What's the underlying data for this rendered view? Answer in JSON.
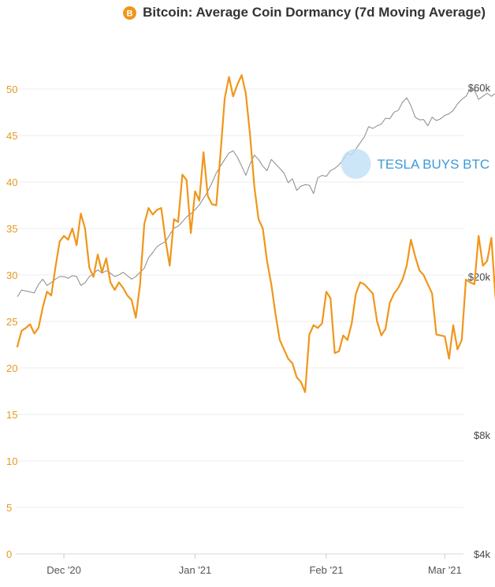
{
  "title": "Bitcoin: Average Coin Dormancy (7d Moving Average)",
  "annotation": "TESLA BUYS BTC",
  "icon": "bitcoin-icon",
  "colors": {
    "dormancy": "#f0961a",
    "price": "#8a8a8a",
    "annotation": "#3b9ad9",
    "annotation_circle": "#bfe0f5",
    "left_axis_text": "#e59a22",
    "right_axis_text": "#444444",
    "grid": "#ececec"
  },
  "chart_data": {
    "type": "line",
    "title": "Bitcoin: Average Coin Dormancy (7d Moving Average)",
    "x_axis": {
      "type": "date",
      "range": [
        "2020-11-20",
        "2021-03-30"
      ],
      "ticks": [
        {
          "date": "2020-12-01",
          "label": "Dec '20"
        },
        {
          "date": "2021-01-01",
          "label": "Jan '21"
        },
        {
          "date": "2021-02-01",
          "label": "Feb '21"
        },
        {
          "date": "2021-03-01",
          "label": "Mar '21"
        }
      ]
    },
    "y_left": {
      "min": 0,
      "max": 52,
      "ticks": [
        0,
        5,
        10,
        15,
        20,
        25,
        30,
        35,
        40,
        45,
        50
      ]
    },
    "y_right": {
      "scale": "log",
      "ticks": [
        {
          "value": 4000,
          "label": "$4k"
        },
        {
          "value": 8000,
          "label": "$8k"
        },
        {
          "value": 20000,
          "label": "$20k"
        },
        {
          "value": 60000,
          "label": "$60k"
        }
      ]
    },
    "grid": true,
    "annotations": [
      {
        "text": "TESLA BUYS BTC",
        "date": "2021-02-08",
        "price": 38500
      }
    ],
    "series": [
      {
        "axis": "left",
        "color": "#f0961a",
        "points": [
          [
            "2020-11-20",
            22.3
          ],
          [
            "2020-11-21",
            24.0
          ],
          [
            "2020-11-22",
            24.3
          ],
          [
            "2020-11-23",
            24.7
          ],
          [
            "2020-11-24",
            23.7
          ],
          [
            "2020-11-25",
            24.3
          ],
          [
            "2020-11-26",
            26.5
          ],
          [
            "2020-11-27",
            28.2
          ],
          [
            "2020-11-28",
            27.8
          ],
          [
            "2020-11-29",
            30.8
          ],
          [
            "2020-11-30",
            33.6
          ],
          [
            "2020-12-01",
            34.2
          ],
          [
            "2020-12-02",
            33.8
          ],
          [
            "2020-12-03",
            35.0
          ],
          [
            "2020-12-04",
            33.2
          ],
          [
            "2020-12-05",
            36.6
          ],
          [
            "2020-12-06",
            35.0
          ],
          [
            "2020-12-07",
            30.8
          ],
          [
            "2020-12-08",
            29.8
          ],
          [
            "2020-12-09",
            32.2
          ],
          [
            "2020-12-10",
            30.3
          ],
          [
            "2020-12-11",
            31.8
          ],
          [
            "2020-12-12",
            29.2
          ],
          [
            "2020-12-13",
            28.4
          ],
          [
            "2020-12-14",
            29.2
          ],
          [
            "2020-12-15",
            28.6
          ],
          [
            "2020-12-16",
            27.8
          ],
          [
            "2020-12-17",
            27.3
          ],
          [
            "2020-12-18",
            25.4
          ],
          [
            "2020-12-19",
            29.0
          ],
          [
            "2020-12-20",
            35.5
          ],
          [
            "2020-12-21",
            37.2
          ],
          [
            "2020-12-22",
            36.5
          ],
          [
            "2020-12-23",
            37.0
          ],
          [
            "2020-12-24",
            37.2
          ],
          [
            "2020-12-25",
            33.8
          ],
          [
            "2020-12-26",
            31.0
          ],
          [
            "2020-12-27",
            36.0
          ],
          [
            "2020-12-28",
            35.7
          ],
          [
            "2020-12-29",
            40.8
          ],
          [
            "2020-12-30",
            40.2
          ],
          [
            "2020-12-31",
            34.5
          ],
          [
            "2021-01-01",
            39.0
          ],
          [
            "2021-01-02",
            38.0
          ],
          [
            "2021-01-03",
            43.2
          ],
          [
            "2021-01-04",
            38.5
          ],
          [
            "2021-01-05",
            37.6
          ],
          [
            "2021-01-06",
            37.5
          ],
          [
            "2021-01-07",
            43.0
          ],
          [
            "2021-01-08",
            49.0
          ],
          [
            "2021-01-09",
            51.3
          ],
          [
            "2021-01-10",
            49.2
          ],
          [
            "2021-01-11",
            50.5
          ],
          [
            "2021-01-12",
            51.5
          ],
          [
            "2021-01-13",
            49.5
          ],
          [
            "2021-01-14",
            45.0
          ],
          [
            "2021-01-15",
            39.5
          ],
          [
            "2021-01-16",
            36.0
          ],
          [
            "2021-01-17",
            35.0
          ],
          [
            "2021-01-18",
            31.5
          ],
          [
            "2021-01-19",
            29.0
          ],
          [
            "2021-01-20",
            25.8
          ],
          [
            "2021-01-21",
            23.0
          ],
          [
            "2021-01-22",
            22.0
          ],
          [
            "2021-01-23",
            21.0
          ],
          [
            "2021-01-24",
            20.5
          ],
          [
            "2021-01-25",
            19.0
          ],
          [
            "2021-01-26",
            18.5
          ],
          [
            "2021-01-27",
            17.4
          ],
          [
            "2021-01-28",
            23.6
          ],
          [
            "2021-01-29",
            24.6
          ],
          [
            "2021-01-30",
            24.3
          ],
          [
            "2021-01-31",
            24.8
          ],
          [
            "2021-02-01",
            28.2
          ],
          [
            "2021-02-02",
            27.5
          ],
          [
            "2021-02-03",
            21.6
          ],
          [
            "2021-02-04",
            21.8
          ],
          [
            "2021-02-05",
            23.5
          ],
          [
            "2021-02-06",
            23.0
          ],
          [
            "2021-02-07",
            24.8
          ],
          [
            "2021-02-08",
            28.0
          ],
          [
            "2021-02-09",
            29.2
          ],
          [
            "2021-02-10",
            29.0
          ],
          [
            "2021-02-11",
            28.5
          ],
          [
            "2021-02-12",
            28.0
          ],
          [
            "2021-02-13",
            25.0
          ],
          [
            "2021-02-14",
            23.5
          ],
          [
            "2021-02-15",
            24.2
          ],
          [
            "2021-02-16",
            27.0
          ],
          [
            "2021-02-17",
            28.0
          ],
          [
            "2021-02-18",
            28.6
          ],
          [
            "2021-02-19",
            29.5
          ],
          [
            "2021-02-20",
            31.0
          ],
          [
            "2021-02-21",
            33.8
          ],
          [
            "2021-02-22",
            32.0
          ],
          [
            "2021-02-23",
            30.5
          ],
          [
            "2021-02-24",
            30.0
          ],
          [
            "2021-02-25",
            29.0
          ],
          [
            "2021-02-26",
            28.0
          ],
          [
            "2021-02-27",
            23.6
          ],
          [
            "2021-02-28",
            23.5
          ],
          [
            "2021-03-01",
            23.4
          ],
          [
            "2021-03-02",
            21.0
          ],
          [
            "2021-03-03",
            24.6
          ],
          [
            "2021-03-04",
            22.0
          ],
          [
            "2021-03-05",
            23.0
          ],
          [
            "2021-03-06",
            29.5
          ],
          [
            "2021-03-07",
            29.2
          ],
          [
            "2021-03-08",
            29.0
          ],
          [
            "2021-03-09",
            34.2
          ],
          [
            "2021-03-10",
            31.0
          ],
          [
            "2021-03-11",
            31.5
          ],
          [
            "2021-03-12",
            34.0
          ],
          [
            "2021-03-13",
            27.5
          ],
          [
            "2021-03-14",
            24.5
          ],
          [
            "2021-03-15",
            27.0
          ],
          [
            "2021-03-16",
            23.5
          ],
          [
            "2021-03-17",
            24.5
          ],
          [
            "2021-03-18",
            24.3
          ],
          [
            "2021-03-19",
            22.3
          ],
          [
            "2021-03-20",
            24.0
          ],
          [
            "2021-03-21",
            24.6
          ]
        ]
      },
      {
        "axis": "right",
        "color": "#8a8a8a",
        "points": [
          [
            "2020-11-20",
            17800
          ],
          [
            "2020-11-21",
            18500
          ],
          [
            "2020-11-22",
            18400
          ],
          [
            "2020-11-23",
            18300
          ],
          [
            "2020-11-24",
            18200
          ],
          [
            "2020-11-25",
            19100
          ],
          [
            "2020-11-26",
            19700
          ],
          [
            "2020-11-27",
            19000
          ],
          [
            "2020-11-28",
            19300
          ],
          [
            "2020-11-29",
            19700
          ],
          [
            "2020-11-30",
            20000
          ],
          [
            "2020-12-01",
            20000
          ],
          [
            "2020-12-02",
            19800
          ],
          [
            "2020-12-03",
            20100
          ],
          [
            "2020-12-04",
            20000
          ],
          [
            "2020-12-05",
            19000
          ],
          [
            "2020-12-06",
            19300
          ],
          [
            "2020-12-07",
            20000
          ],
          [
            "2020-12-08",
            20300
          ],
          [
            "2020-12-09",
            20800
          ],
          [
            "2020-12-10",
            20400
          ],
          [
            "2020-12-11",
            20700
          ],
          [
            "2020-12-12",
            20400
          ],
          [
            "2020-12-13",
            20000
          ],
          [
            "2020-12-14",
            20200
          ],
          [
            "2020-12-15",
            20500
          ],
          [
            "2020-12-16",
            20100
          ],
          [
            "2020-12-17",
            19700
          ],
          [
            "2020-12-18",
            20000
          ],
          [
            "2020-12-19",
            20500
          ],
          [
            "2020-12-20",
            21000
          ],
          [
            "2020-12-21",
            22300
          ],
          [
            "2020-12-22",
            23000
          ],
          [
            "2020-12-23",
            23800
          ],
          [
            "2020-12-24",
            24200
          ],
          [
            "2020-12-25",
            24500
          ],
          [
            "2020-12-26",
            25500
          ],
          [
            "2020-12-27",
            26500
          ],
          [
            "2020-12-28",
            26800
          ],
          [
            "2020-12-29",
            27500
          ],
          [
            "2020-12-30",
            28300
          ],
          [
            "2020-12-31",
            28800
          ],
          [
            "2021-01-01",
            29500
          ],
          [
            "2021-01-02",
            30300
          ],
          [
            "2021-01-03",
            31500
          ],
          [
            "2021-01-04",
            32800
          ],
          [
            "2021-01-05",
            34500
          ],
          [
            "2021-01-06",
            36500
          ],
          [
            "2021-01-07",
            38000
          ],
          [
            "2021-01-08",
            39500
          ],
          [
            "2021-01-09",
            41000
          ],
          [
            "2021-01-10",
            41500
          ],
          [
            "2021-01-11",
            40000
          ],
          [
            "2021-01-12",
            38000
          ],
          [
            "2021-01-13",
            36000
          ],
          [
            "2021-01-14",
            38500
          ],
          [
            "2021-01-15",
            40500
          ],
          [
            "2021-01-16",
            39500
          ],
          [
            "2021-01-17",
            38000
          ],
          [
            "2021-01-18",
            37000
          ],
          [
            "2021-01-19",
            39500
          ],
          [
            "2021-01-20",
            38500
          ],
          [
            "2021-01-21",
            37500
          ],
          [
            "2021-01-22",
            36500
          ],
          [
            "2021-01-23",
            34500
          ],
          [
            "2021-01-24",
            35300
          ],
          [
            "2021-01-25",
            33000
          ],
          [
            "2021-01-26",
            33800
          ],
          [
            "2021-01-27",
            34100
          ],
          [
            "2021-01-28",
            34000
          ],
          [
            "2021-01-29",
            32400
          ],
          [
            "2021-01-30",
            35500
          ],
          [
            "2021-01-31",
            36000
          ],
          [
            "2021-02-01",
            35800
          ],
          [
            "2021-02-02",
            37000
          ],
          [
            "2021-02-03",
            37500
          ],
          [
            "2021-02-04",
            38300
          ],
          [
            "2021-02-05",
            39400
          ],
          [
            "2021-02-06",
            41000
          ],
          [
            "2021-02-07",
            40500
          ],
          [
            "2021-02-08",
            42000
          ],
          [
            "2021-02-09",
            43500
          ],
          [
            "2021-02-10",
            45000
          ],
          [
            "2021-02-11",
            47800
          ],
          [
            "2021-02-12",
            47300
          ],
          [
            "2021-02-13",
            48000
          ],
          [
            "2021-02-14",
            48500
          ],
          [
            "2021-02-15",
            50200
          ],
          [
            "2021-02-16",
            50000
          ],
          [
            "2021-02-17",
            52000
          ],
          [
            "2021-02-18",
            52500
          ],
          [
            "2021-02-19",
            55000
          ],
          [
            "2021-02-20",
            56500
          ],
          [
            "2021-02-21",
            54000
          ],
          [
            "2021-02-22",
            50500
          ],
          [
            "2021-02-23",
            49700
          ],
          [
            "2021-02-24",
            49800
          ],
          [
            "2021-02-25",
            48000
          ],
          [
            "2021-02-26",
            50500
          ],
          [
            "2021-02-27",
            49500
          ],
          [
            "2021-02-28",
            50000
          ],
          [
            "2021-03-01",
            51000
          ],
          [
            "2021-03-02",
            51500
          ],
          [
            "2021-03-03",
            52500
          ],
          [
            "2021-03-04",
            54500
          ],
          [
            "2021-03-05",
            56000
          ],
          [
            "2021-03-06",
            57000
          ],
          [
            "2021-03-07",
            59500
          ],
          [
            "2021-03-08",
            59000
          ],
          [
            "2021-03-09",
            56000
          ],
          [
            "2021-03-10",
            57000
          ],
          [
            "2021-03-11",
            58000
          ],
          [
            "2021-03-12",
            57000
          ],
          [
            "2021-03-13",
            58000
          ],
          [
            "2021-03-14",
            57500
          ],
          [
            "2021-03-15",
            57000
          ],
          [
            "2021-03-16",
            55500
          ],
          [
            "2021-03-17",
            54500
          ],
          [
            "2021-03-18",
            54800
          ],
          [
            "2021-03-19",
            55500
          ],
          [
            "2021-03-20",
            56500
          ],
          [
            "2021-03-21",
            56300
          ]
        ]
      }
    ]
  }
}
